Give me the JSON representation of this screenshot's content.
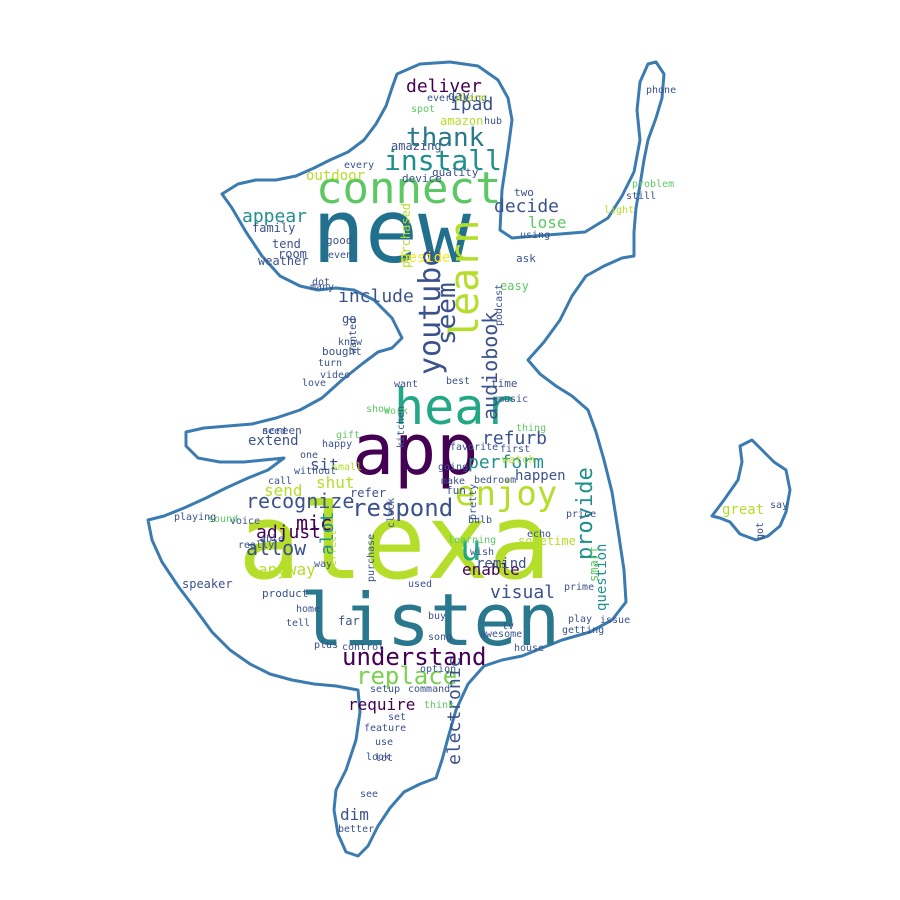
{
  "colors": {
    "outline": "#3b7bb0",
    "background": "#ffffff",
    "palette": [
      "#440154",
      "#3b528b",
      "#21908d",
      "#5dc863",
      "#b5de2b",
      "#fde725",
      "#2a788e",
      "#22a884",
      "#7ad151"
    ]
  },
  "words": [
    {
      "text": "new",
      "color": "#21718e"
    },
    {
      "text": "alexa",
      "color": "#b5de2b"
    },
    {
      "text": "listen",
      "color": "#2a788e"
    },
    {
      "text": "app",
      "color": "#440154"
    },
    {
      "text": "connect",
      "color": "#5dc863"
    },
    {
      "text": "hear",
      "color": "#22a884"
    },
    {
      "text": "enjoy",
      "color": "#b5de2b"
    },
    {
      "text": "understand",
      "color": "#440154"
    },
    {
      "text": "learn",
      "color": "#b5de2b"
    },
    {
      "text": "youtube",
      "color": "#3b528b"
    },
    {
      "text": "install",
      "color": "#21908d"
    },
    {
      "text": "thank",
      "color": "#2a788e"
    },
    {
      "text": "respond",
      "color": "#3b528b"
    },
    {
      "text": "replace",
      "color": "#7ad151"
    },
    {
      "text": "u",
      "color": "#22a884"
    },
    {
      "text": "recognize",
      "color": "#3b528b"
    },
    {
      "text": "provide",
      "color": "#21908d"
    },
    {
      "text": "seem",
      "color": "#3b528b"
    },
    {
      "text": "audiobook",
      "color": "#3b528b"
    },
    {
      "text": "refurb",
      "color": "#3b528b"
    },
    {
      "text": "perform",
      "color": "#21908d"
    },
    {
      "text": "decide",
      "color": "#3b528b"
    },
    {
      "text": "deliver",
      "color": "#440154"
    },
    {
      "text": "ipad",
      "color": "#3b528b"
    },
    {
      "text": "allow",
      "color": "#3b528b"
    },
    {
      "text": "adjust",
      "color": "#440154"
    },
    {
      "text": "include",
      "color": "#3b528b"
    },
    {
      "text": "appear",
      "color": "#21908d"
    },
    {
      "text": "lose",
      "color": "#5dc863"
    },
    {
      "text": "outdoor",
      "color": "#b5de2b"
    },
    {
      "text": "visual",
      "color": "#3b528b"
    },
    {
      "text": "enable",
      "color": "#440154"
    },
    {
      "text": "remind",
      "color": "#3b528b"
    },
    {
      "text": "mic",
      "color": "#440154"
    },
    {
      "text": "anyway",
      "color": "#b5de2b"
    },
    {
      "text": "send",
      "color": "#b5de2b"
    },
    {
      "text": "shut",
      "color": "#b5de2b"
    },
    {
      "text": "sit",
      "color": "#3b528b"
    },
    {
      "text": "extend",
      "color": "#3b528b"
    },
    {
      "text": "dim",
      "color": "#3b528b"
    },
    {
      "text": "electronic",
      "color": "#3b528b"
    },
    {
      "text": "require",
      "color": "#440154"
    },
    {
      "text": "alot",
      "color": "#21908d"
    },
    {
      "text": "happen",
      "color": "#3b528b"
    },
    {
      "text": "tend",
      "color": "#3b528b"
    },
    {
      "text": "refer",
      "color": "#3b528b"
    },
    {
      "text": "beside",
      "color": "#fde725"
    },
    {
      "text": "sometime",
      "color": "#b5de2b"
    },
    {
      "text": "question",
      "color": "#21908d"
    },
    {
      "text": "thing",
      "color": "#5dc863"
    },
    {
      "text": "first",
      "color": "#3b528b"
    },
    {
      "text": "speaker",
      "color": "#3b528b"
    },
    {
      "text": "great",
      "color": "#b5de2b"
    },
    {
      "text": "weather",
      "color": "#3b528b"
    },
    {
      "text": "room",
      "color": "#3b528b"
    },
    {
      "text": "family",
      "color": "#3b528b"
    },
    {
      "text": "amazon",
      "color": "#b5de2b"
    },
    {
      "text": "spot",
      "color": "#5dc863"
    },
    {
      "text": "day",
      "color": "#3b528b"
    },
    {
      "text": "hub",
      "color": "#3b528b"
    },
    {
      "text": "amazing",
      "color": "#3b528b"
    },
    {
      "text": "quality",
      "color": "#3b528b"
    },
    {
      "text": "device",
      "color": "#3b528b"
    },
    {
      "text": "every",
      "color": "#3b528b"
    },
    {
      "text": "two",
      "color": "#3b528b"
    },
    {
      "text": "using",
      "color": "#3b528b"
    },
    {
      "text": "ask",
      "color": "#3b528b"
    },
    {
      "text": "easy",
      "color": "#5dc863"
    },
    {
      "text": "good",
      "color": "#3b528b"
    },
    {
      "text": "even",
      "color": "#3b528b"
    },
    {
      "text": "many",
      "color": "#3b528b"
    },
    {
      "text": "dot",
      "color": "#3b528b"
    },
    {
      "text": "go",
      "color": "#3b528b"
    },
    {
      "text": "purchased",
      "color": "#b5de2b"
    },
    {
      "text": "know",
      "color": "#3b528b"
    },
    {
      "text": "bought",
      "color": "#3b528b"
    },
    {
      "text": "turn",
      "color": "#3b528b"
    },
    {
      "text": "video",
      "color": "#3b528b"
    },
    {
      "text": "love",
      "color": "#3b528b"
    },
    {
      "text": "need",
      "color": "#3b528b"
    },
    {
      "text": "screen",
      "color": "#3b528b"
    },
    {
      "text": "one",
      "color": "#3b528b"
    },
    {
      "text": "happy",
      "color": "#3b528b"
    },
    {
      "text": "work",
      "color": "#5dc863"
    },
    {
      "text": "show",
      "color": "#5dc863"
    },
    {
      "text": "want",
      "color": "#3b528b"
    },
    {
      "text": "best",
      "color": "#3b528b"
    },
    {
      "text": "time",
      "color": "#3b528b"
    },
    {
      "text": "music",
      "color": "#3b528b"
    },
    {
      "text": "kitchen",
      "color": "#3b528b"
    },
    {
      "text": "bedroom",
      "color": "#3b528b"
    },
    {
      "text": "watch",
      "color": "#b5de2b"
    },
    {
      "text": "call",
      "color": "#3b528b"
    },
    {
      "text": "without",
      "color": "#3b528b"
    },
    {
      "text": "make",
      "color": "#3b528b"
    },
    {
      "text": "going",
      "color": "#3b528b"
    },
    {
      "text": "fun",
      "color": "#3b528b"
    },
    {
      "text": "voice",
      "color": "#3b528b"
    },
    {
      "text": "sound",
      "color": "#5dc863"
    },
    {
      "text": "able",
      "color": "#3b528b"
    },
    {
      "text": "really",
      "color": "#3b528b"
    },
    {
      "text": "way",
      "color": "#3b528b"
    },
    {
      "text": "purchase",
      "color": "#3b528b"
    },
    {
      "text": "perfect",
      "color": "#b5de2b"
    },
    {
      "text": "pretty",
      "color": "#3b528b"
    },
    {
      "text": "bulb",
      "color": "#3b528b"
    },
    {
      "text": "learning",
      "color": "#5dc863"
    },
    {
      "text": "echo",
      "color": "#3b528b"
    },
    {
      "text": "price",
      "color": "#3b528b"
    },
    {
      "text": "product",
      "color": "#3b528b"
    },
    {
      "text": "home",
      "color": "#3b528b"
    },
    {
      "text": "tell",
      "color": "#3b528b"
    },
    {
      "text": "far",
      "color": "#3b528b"
    },
    {
      "text": "used",
      "color": "#3b528b"
    },
    {
      "text": "buy",
      "color": "#3b528b"
    },
    {
      "text": "wish",
      "color": "#3b528b"
    },
    {
      "text": "song",
      "color": "#3b528b"
    },
    {
      "text": "tv",
      "color": "#3b528b"
    },
    {
      "text": "awesome",
      "color": "#3b528b"
    },
    {
      "text": "control",
      "color": "#3b528b"
    },
    {
      "text": "plus",
      "color": "#3b528b"
    },
    {
      "text": "house",
      "color": "#3b528b"
    },
    {
      "text": "getting",
      "color": "#3b528b"
    },
    {
      "text": "play",
      "color": "#3b528b"
    },
    {
      "text": "prime",
      "color": "#3b528b"
    },
    {
      "text": "smart",
      "color": "#5dc863"
    },
    {
      "text": "setup",
      "color": "#3b528b"
    },
    {
      "text": "command",
      "color": "#3b528b"
    },
    {
      "text": "feature",
      "color": "#3b528b"
    },
    {
      "text": "set",
      "color": "#3b528b"
    },
    {
      "text": "use",
      "color": "#3b528b"
    },
    {
      "text": "lot",
      "color": "#3b528b"
    },
    {
      "text": "look",
      "color": "#3b528b"
    },
    {
      "text": "see",
      "color": "#3b528b"
    },
    {
      "text": "better",
      "color": "#3b528b"
    },
    {
      "text": "think",
      "color": "#5dc863"
    },
    {
      "text": "problem",
      "color": "#5dc863"
    },
    {
      "text": "still",
      "color": "#3b528b"
    },
    {
      "text": "light",
      "color": "#b5de2b"
    },
    {
      "text": "phone",
      "color": "#3b528b"
    },
    {
      "text": "say",
      "color": "#3b528b"
    },
    {
      "text": "got",
      "color": "#3b528b"
    },
    {
      "text": "everything",
      "color": "#3b528b"
    },
    {
      "text": "alarm",
      "color": "#b5de2b"
    },
    {
      "text": "small",
      "color": "#b5de2b"
    },
    {
      "text": "gift",
      "color": "#5dc863"
    },
    {
      "text": "option",
      "color": "#3b528b"
    },
    {
      "text": "issue",
      "color": "#3b528b"
    },
    {
      "text": "wanted",
      "color": "#3b528b"
    },
    {
      "text": "clock",
      "color": "#3b528b"
    },
    {
      "text": "podcast",
      "color": "#3b528b"
    },
    {
      "text": "playing",
      "color": "#3b528b"
    },
    {
      "text": "favorite",
      "color": "#3b528b"
    }
  ]
}
